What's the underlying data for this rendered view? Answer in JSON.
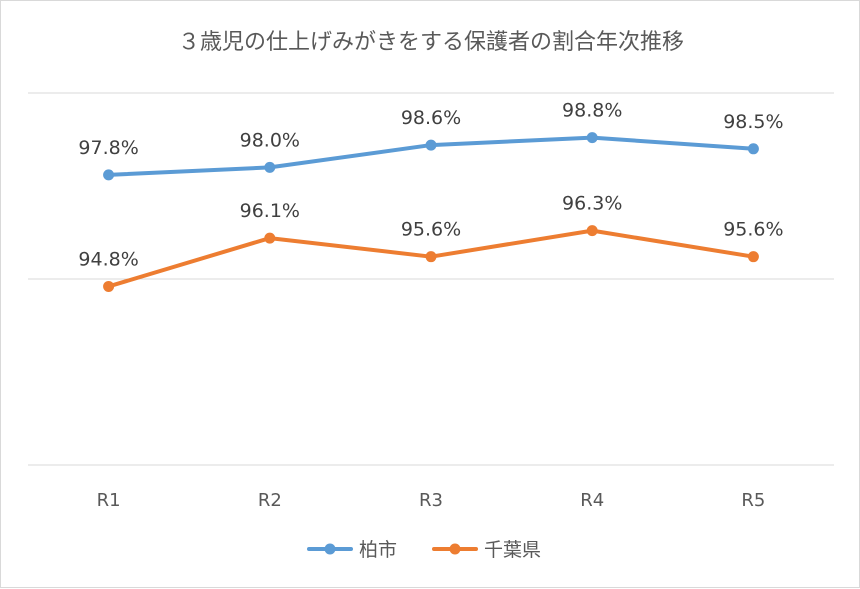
{
  "chart_data": {
    "type": "line",
    "title": "３歳児の仕上げみがきをする保護者の割合年次推移",
    "categories": [
      "R1",
      "R2",
      "R3",
      "R4",
      "R5"
    ],
    "series": [
      {
        "name": "柏市",
        "color": "#5b9bd5",
        "values": [
          97.8,
          98.0,
          98.6,
          98.8,
          98.5
        ],
        "labels": [
          "97.8%",
          "98.0%",
          "98.6%",
          "98.8%",
          "98.5%"
        ]
      },
      {
        "name": "千葉県",
        "color": "#ed7d31",
        "values": [
          94.8,
          96.1,
          95.6,
          96.3,
          95.6
        ],
        "labels": [
          "94.8%",
          "96.1%",
          "95.6%",
          "96.3%",
          "95.6%"
        ]
      }
    ],
    "ylim": [
      90,
      100
    ],
    "grid": true,
    "legend": "bottom"
  }
}
